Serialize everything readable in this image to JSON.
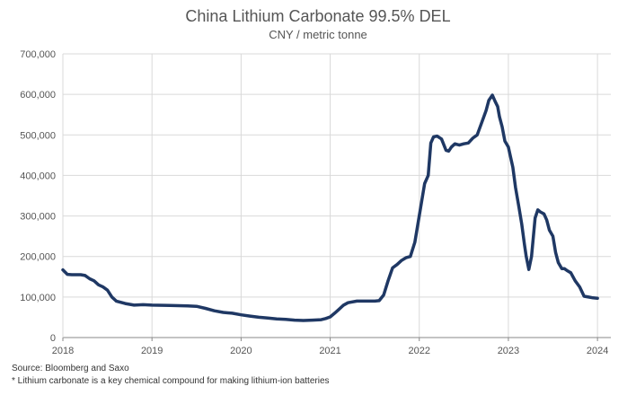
{
  "chart_data": {
    "type": "line",
    "title": "China Lithium Carbonate 99.5% DEL",
    "subtitle": "CNY / metric tonne",
    "xlabel": "",
    "ylabel": "",
    "xlim": [
      2018,
      2024.15
    ],
    "ylim": [
      0,
      700000
    ],
    "grid": true,
    "x_ticks": [
      2018,
      2019,
      2020,
      2021,
      2022,
      2023,
      2024
    ],
    "x_tick_labels": [
      "2018",
      "2019",
      "2020",
      "2021",
      "2022",
      "2023",
      "2024"
    ],
    "y_ticks": [
      0,
      100000,
      200000,
      300000,
      400000,
      500000,
      600000,
      700000
    ],
    "y_tick_labels": [
      "0",
      "100,000",
      "200,000",
      "300,000",
      "400,000",
      "500,000",
      "600,000",
      "700,000"
    ],
    "line_color": "#1f3864",
    "series": [
      {
        "name": "",
        "x": [
          2018.0,
          2018.05,
          2018.1,
          2018.2,
          2018.25,
          2018.3,
          2018.35,
          2018.4,
          2018.45,
          2018.5,
          2018.55,
          2018.6,
          2018.7,
          2018.8,
          2018.9,
          2019.0,
          2019.2,
          2019.4,
          2019.5,
          2019.6,
          2019.7,
          2019.8,
          2019.9,
          2020.0,
          2020.1,
          2020.2,
          2020.3,
          2020.4,
          2020.5,
          2020.6,
          2020.7,
          2020.8,
          2020.9,
          2020.95,
          2021.0,
          2021.05,
          2021.1,
          2021.15,
          2021.2,
          2021.3,
          2021.4,
          2021.5,
          2021.55,
          2021.6,
          2021.65,
          2021.7,
          2021.75,
          2021.8,
          2021.85,
          2021.9,
          2021.95,
          2022.0,
          2022.03,
          2022.06,
          2022.1,
          2022.13,
          2022.16,
          2022.2,
          2022.25,
          2022.3,
          2022.33,
          2022.36,
          2022.4,
          2022.45,
          2022.5,
          2022.55,
          2022.6,
          2022.65,
          2022.7,
          2022.75,
          2022.78,
          2022.82,
          2022.85,
          2022.88,
          2022.9,
          2022.93,
          2022.96,
          2023.0,
          2023.05,
          2023.08,
          2023.12,
          2023.15,
          2023.18,
          2023.2,
          2023.23,
          2023.26,
          2023.3,
          2023.33,
          2023.36,
          2023.4,
          2023.43,
          2023.46,
          2023.5,
          2023.53,
          2023.56,
          2023.6,
          2023.63,
          2023.66,
          2023.7,
          2023.75,
          2023.8,
          2023.85,
          2023.9,
          2023.95,
          2024.0
        ],
        "values": [
          167000,
          156000,
          155000,
          155000,
          153000,
          145000,
          140000,
          130000,
          125000,
          117000,
          100000,
          90000,
          84000,
          80000,
          81000,
          80000,
          79000,
          78000,
          77000,
          72000,
          66000,
          62000,
          60000,
          56000,
          53000,
          50000,
          48000,
          46000,
          45000,
          43000,
          42000,
          43000,
          44000,
          47000,
          51000,
          60000,
          70000,
          80000,
          86000,
          90000,
          90000,
          90000,
          91000,
          105000,
          140000,
          172000,
          180000,
          190000,
          197000,
          200000,
          235000,
          300000,
          340000,
          380000,
          400000,
          480000,
          495000,
          497000,
          490000,
          462000,
          460000,
          470000,
          478000,
          475000,
          478000,
          480000,
          492000,
          500000,
          530000,
          560000,
          585000,
          598000,
          583000,
          570000,
          545000,
          520000,
          485000,
          470000,
          420000,
          370000,
          320000,
          280000,
          230000,
          200000,
          168000,
          200000,
          295000,
          315000,
          310000,
          305000,
          290000,
          265000,
          250000,
          210000,
          185000,
          170000,
          170000,
          165000,
          160000,
          140000,
          125000,
          102000,
          100000,
          98000,
          97000
        ]
      }
    ]
  },
  "footer": {
    "source": "Source: Bloomberg and Saxo",
    "note": "* Lithium carbonate is a key chemical compound for making lithium-ion batteries"
  }
}
